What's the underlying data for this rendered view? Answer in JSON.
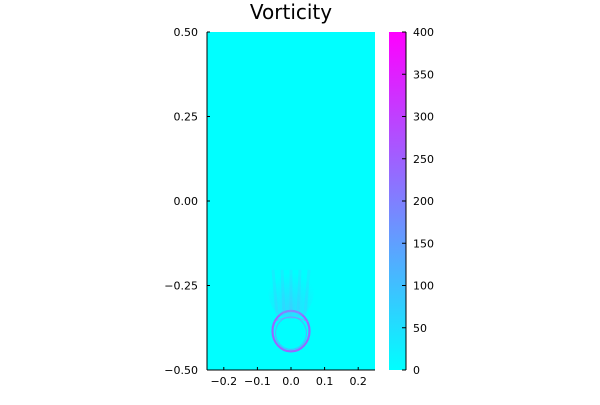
{
  "chart_data": {
    "type": "heatmap",
    "title": "Vorticity",
    "xlabel": "",
    "ylabel": "",
    "xlim": [
      -0.25,
      0.25
    ],
    "ylim": [
      -0.5,
      0.5
    ],
    "x_ticks": [
      {
        "value": -0.2,
        "label": "−0.2"
      },
      {
        "value": -0.1,
        "label": "−0.1"
      },
      {
        "value": 0.0,
        "label": "0.0"
      },
      {
        "value": 0.1,
        "label": "0.1"
      },
      {
        "value": 0.2,
        "label": "0.2"
      }
    ],
    "y_ticks": [
      {
        "value": -0.5,
        "label": "−0.50"
      },
      {
        "value": -0.25,
        "label": "−0.25"
      },
      {
        "value": 0.0,
        "label": "0.00"
      },
      {
        "value": 0.25,
        "label": "0.25"
      },
      {
        "value": 0.5,
        "label": "0.50"
      }
    ],
    "colorbar": {
      "range": [
        0,
        400
      ],
      "ticks": [
        0,
        50,
        100,
        150,
        200,
        250,
        300,
        350,
        400
      ],
      "colormap": [
        "#00ffff",
        "#ff00ff"
      ]
    },
    "background_value": 0,
    "features": [
      {
        "name": "vortex-ring",
        "center": [
          0.0,
          -0.385
        ],
        "radius_x": 0.055,
        "radius_y": 0.06,
        "value": 260
      },
      {
        "name": "wake-plume",
        "x_range": [
          -0.05,
          0.05
        ],
        "y_range": [
          -0.35,
          -0.18
        ],
        "value": 60
      }
    ],
    "grid": false,
    "legend": "none"
  }
}
